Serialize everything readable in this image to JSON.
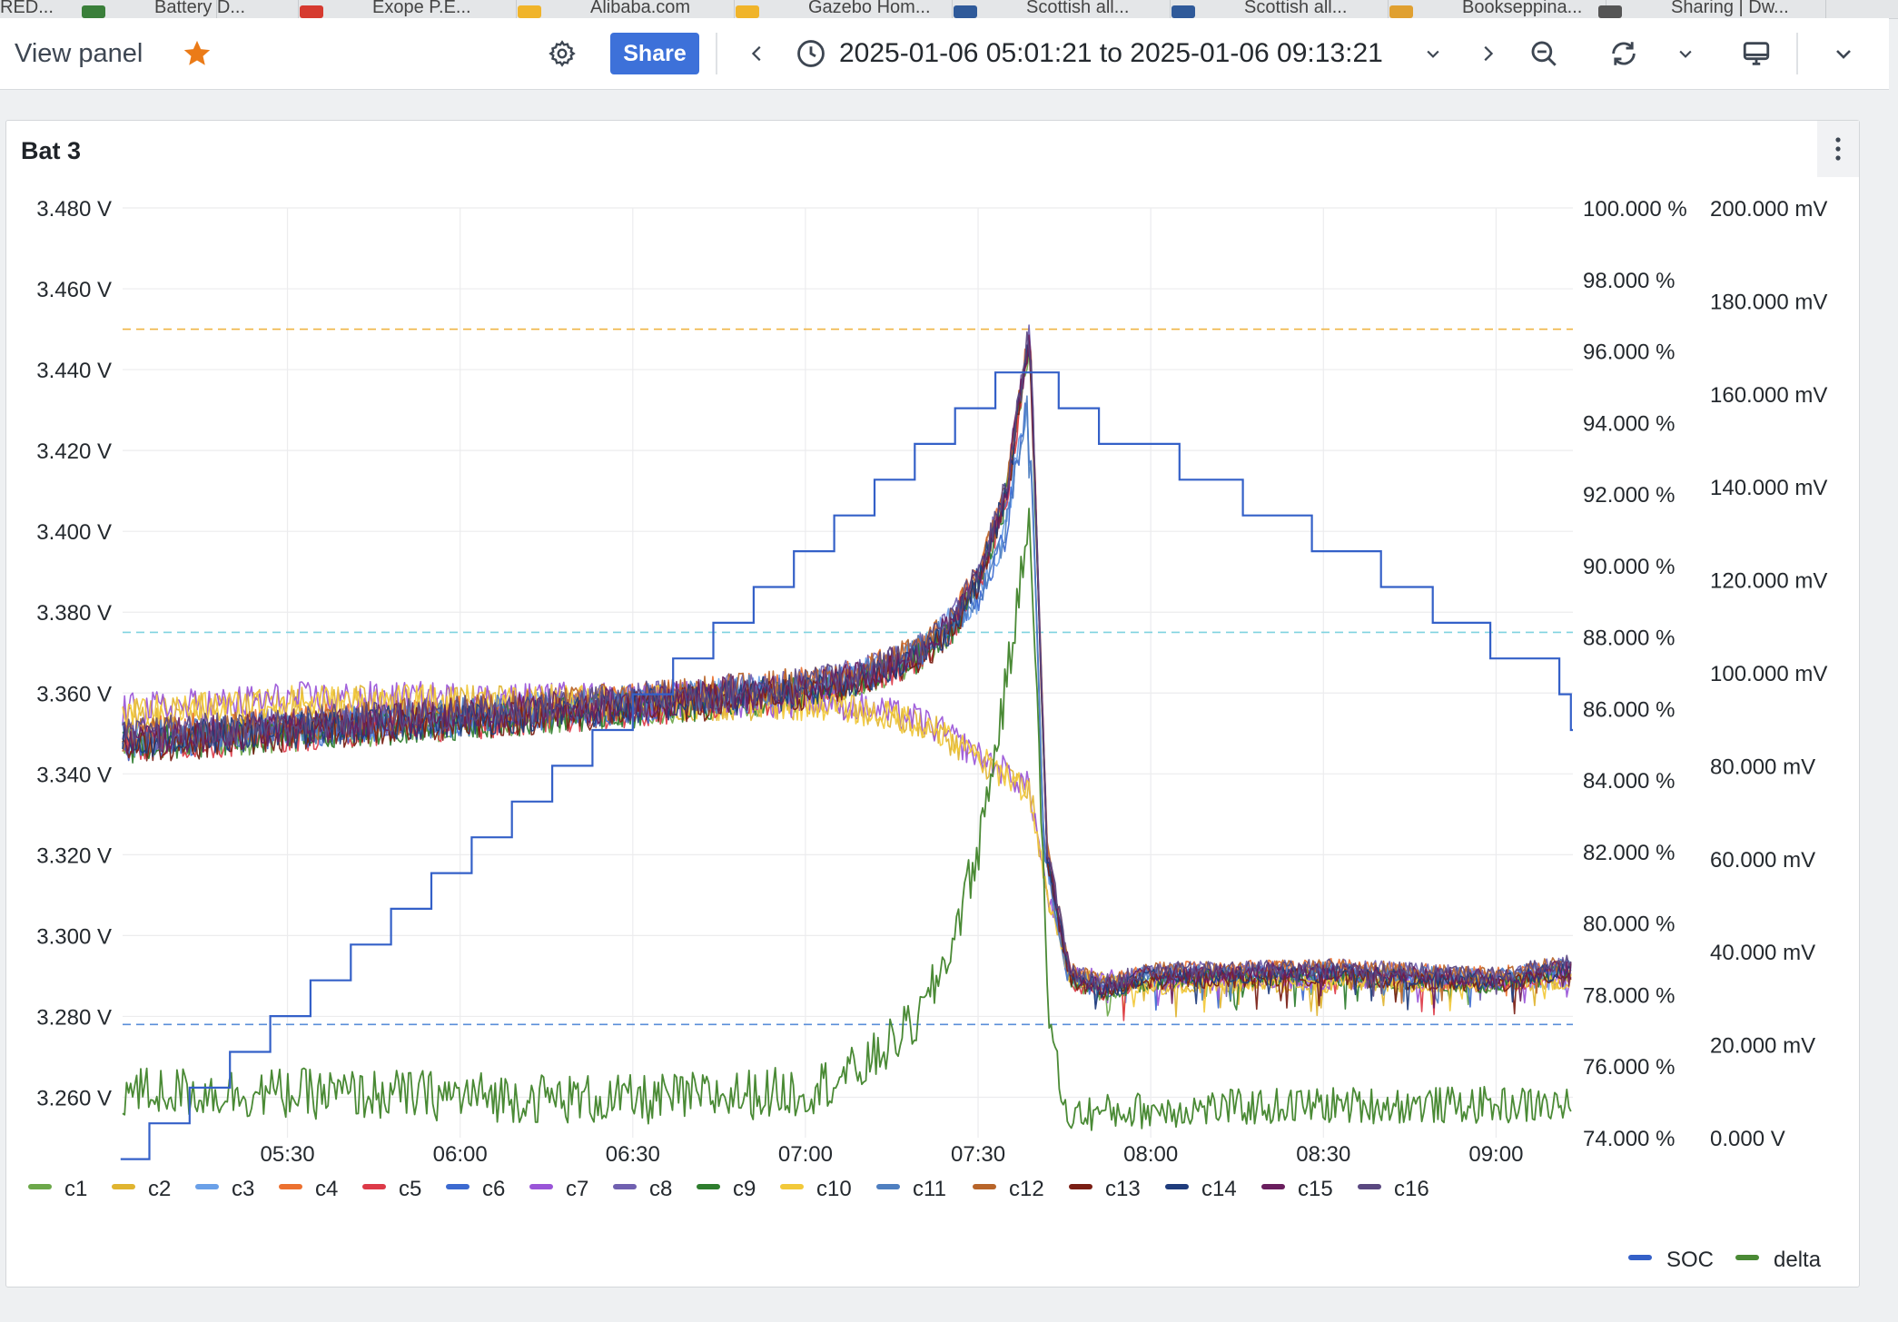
{
  "browser_tabs": [
    {
      "label": "RED...",
      "color": "#888888"
    },
    {
      "label": "Battery D...",
      "color": "#3a7f3a"
    },
    {
      "label": "Exope P.E...",
      "color": "#d63a2f"
    },
    {
      "label": "Alibaba.com",
      "color": "#f0b42a"
    },
    {
      "label": "Gazebo Hom...",
      "color": "#f0b42a"
    },
    {
      "label": "Scottish all...",
      "color": "#2f5a9a"
    },
    {
      "label": "Scottish all...",
      "color": "#2f5a9a"
    },
    {
      "label": "Bookseppina...",
      "color": "#e0a030"
    },
    {
      "label": "Sharing | Dw...",
      "color": "#555555"
    }
  ],
  "toolbar": {
    "view_panel_label": "View panel",
    "share_label": "Share",
    "time_range": "2025-01-06 05:01:21 to 2025-01-06 09:13:21",
    "icons": [
      "star-icon",
      "gear-icon",
      "chevron-left-icon",
      "clock-icon",
      "chevron-down-icon",
      "chevron-right-icon",
      "zoom-out-icon",
      "refresh-icon",
      "chevron-down-icon",
      "tv-icon",
      "chevron-down-icon"
    ],
    "star_color": "#eb7b18",
    "share_color": "#3d71d9"
  },
  "panel": {
    "title": "Bat 3",
    "menu_icon": "kebab-menu-icon"
  },
  "chart_data": {
    "type": "line",
    "x_ticks": [
      "05:30",
      "06:00",
      "06:30",
      "07:00",
      "07:30",
      "08:00",
      "08:30",
      "09:00"
    ],
    "x_range": [
      "05:01:21",
      "09:13:21"
    ],
    "y_left": {
      "unit": "V",
      "range": [
        3.25,
        3.48
      ],
      "ticks": [
        "3.480 V",
        "3.460 V",
        "3.440 V",
        "3.420 V",
        "3.400 V",
        "3.380 V",
        "3.360 V",
        "3.340 V",
        "3.320 V",
        "3.300 V",
        "3.280 V",
        "3.260 V"
      ]
    },
    "y_right_soc": {
      "unit": "%",
      "range": [
        74,
        100
      ],
      "ticks": [
        "100.000 %",
        "98.000 %",
        "96.000 %",
        "94.000 %",
        "92.000 %",
        "90.000 %",
        "88.000 %",
        "86.000 %",
        "84.000 %",
        "82.000 %",
        "80.000 %",
        "78.000 %",
        "76.000 %",
        "74.000 %"
      ]
    },
    "y_right_delta": {
      "unit": "mV",
      "range": [
        0,
        200
      ],
      "ticks": [
        "200.000 mV",
        "180.000 mV",
        "160.000 mV",
        "140.000 mV",
        "120.000 mV",
        "100.000 mV",
        "80.000 mV",
        "60.000 mV",
        "40.000 mV",
        "20.000 mV",
        "0.000 V"
      ]
    },
    "thresholds": [
      {
        "value": 3.45,
        "color": "#f0b443"
      },
      {
        "value": 3.375,
        "color": "#7fd3e0"
      },
      {
        "value": 3.278,
        "color": "#5a8ed8"
      }
    ],
    "cells_series": [
      {
        "name": "c1",
        "color": "#6ca84a"
      },
      {
        "name": "c2",
        "color": "#e0b430"
      },
      {
        "name": "c3",
        "color": "#6aa0e8"
      },
      {
        "name": "c4",
        "color": "#ec7130"
      },
      {
        "name": "c5",
        "color": "#dd3a48"
      },
      {
        "name": "c6",
        "color": "#3c6ad0"
      },
      {
        "name": "c7",
        "color": "#9a55d8"
      },
      {
        "name": "c8",
        "color": "#7060b0"
      },
      {
        "name": "c9",
        "color": "#2e7d2e"
      },
      {
        "name": "c10",
        "color": "#f2c93a"
      },
      {
        "name": "c11",
        "color": "#4f7fc0"
      },
      {
        "name": "c12",
        "color": "#b8652a"
      },
      {
        "name": "c13",
        "color": "#7a1e14"
      },
      {
        "name": "c14",
        "color": "#1f3c7c"
      },
      {
        "name": "c15",
        "color": "#6a1e5e"
      },
      {
        "name": "c16",
        "color": "#5a4880"
      }
    ],
    "cell_profile": {
      "t": [
        "05:01",
        "05:30",
        "06:00",
        "06:30",
        "07:00",
        "07:10",
        "07:20",
        "07:25",
        "07:30",
        "07:35",
        "07:38",
        "07:39",
        "07:42",
        "07:46",
        "07:52",
        "08:00",
        "08:30",
        "09:00",
        "09:13"
      ],
      "v": [
        3.348,
        3.351,
        3.354,
        3.357,
        3.361,
        3.364,
        3.37,
        3.376,
        3.388,
        3.41,
        3.44,
        3.449,
        3.32,
        3.29,
        3.287,
        3.29,
        3.291,
        3.289,
        3.292
      ]
    },
    "low_cells_profile": {
      "t": [
        "05:01",
        "05:30",
        "06:00",
        "06:30",
        "07:00",
        "07:10",
        "07:20",
        "07:25",
        "07:30",
        "07:35",
        "07:39",
        "07:42",
        "07:46",
        "08:00",
        "09:13"
      ],
      "v": [
        3.355,
        3.358,
        3.358,
        3.358,
        3.358,
        3.356,
        3.353,
        3.349,
        3.344,
        3.34,
        3.336,
        3.31,
        3.29,
        3.288,
        3.289
      ]
    },
    "soc_series": {
      "name": "SOC",
      "color": "#3460c8",
      "t": [
        "05:01",
        "05:06",
        "05:13",
        "05:20",
        "05:27",
        "05:34",
        "05:41",
        "05:48",
        "05:55",
        "06:02",
        "06:09",
        "06:16",
        "06:23",
        "06:30",
        "06:37",
        "06:44",
        "06:51",
        "06:58",
        "07:05",
        "07:12",
        "07:19",
        "07:26",
        "07:33",
        "07:44",
        "07:51",
        "08:05",
        "08:16",
        "08:28",
        "08:40",
        "08:49",
        "08:59",
        "09:11",
        "09:13"
      ],
      "v": [
        73.4,
        74.4,
        75.4,
        76.4,
        77.4,
        78.4,
        79.4,
        80.4,
        81.4,
        82.4,
        83.4,
        84.4,
        85.4,
        86.4,
        87.4,
        88.4,
        89.4,
        90.4,
        91.4,
        92.4,
        93.4,
        94.4,
        95.4,
        94.4,
        93.4,
        92.4,
        91.4,
        90.4,
        89.4,
        88.4,
        87.4,
        86.4,
        85.4
      ]
    },
    "delta_series": {
      "name": "delta",
      "color": "#4a8a35",
      "t": [
        "05:01",
        "06:00",
        "06:30",
        "07:00",
        "07:10",
        "07:20",
        "07:25",
        "07:30",
        "07:35",
        "07:38",
        "07:39",
        "07:40",
        "07:42",
        "07:45",
        "08:00",
        "08:30",
        "09:00",
        "09:13"
      ],
      "v": [
        10,
        9,
        8,
        10,
        15,
        26,
        40,
        62,
        98,
        125,
        135,
        105,
        30,
        5,
        6,
        7,
        7,
        7
      ]
    },
    "legend_left": [
      "c1",
      "c2",
      "c3",
      "c4",
      "c5",
      "c6",
      "c7",
      "c8",
      "c9",
      "c10",
      "c11",
      "c12",
      "c13",
      "c14",
      "c15",
      "c16"
    ],
    "legend_right": [
      "SOC",
      "delta"
    ],
    "grid": true
  }
}
